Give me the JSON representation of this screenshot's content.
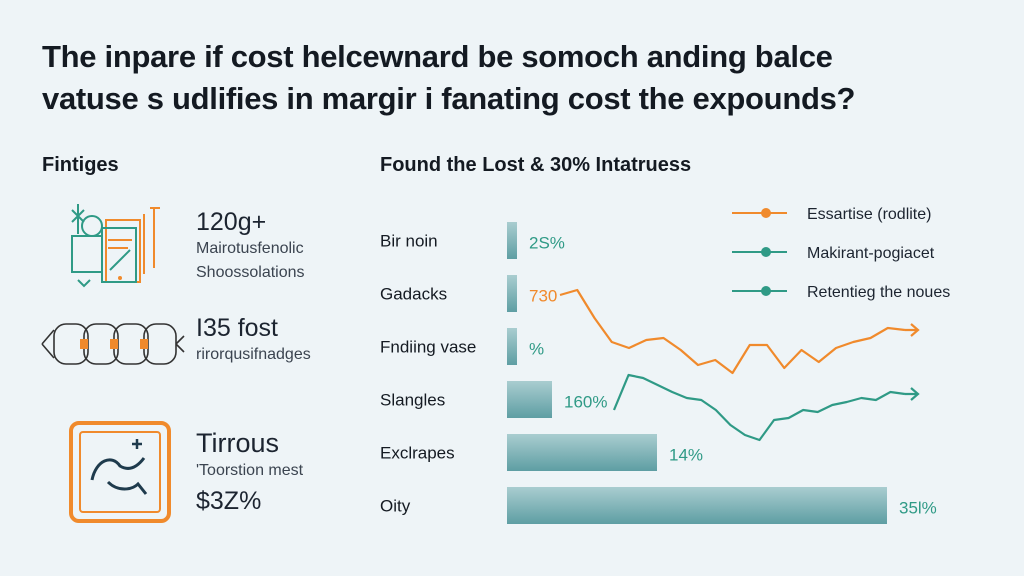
{
  "title": {
    "line1": "The inpare if cost helcewnard be somoch anding balce",
    "line2": "vatuse s udlifies in margir i fanating cost the expounds?"
  },
  "left_panel": {
    "heading": "Fintiges",
    "stats": [
      {
        "icon": "document-tablet-icon",
        "value": "120g+",
        "lines": [
          "Mairotusfenolic",
          "Shoossolations"
        ]
      },
      {
        "icon": "chain-network-icon",
        "value": "I35 fost",
        "lines": [
          "rirorqusifnadges"
        ]
      },
      {
        "icon": "framed-bird-icon",
        "value": "Tirrous",
        "lines": [
          "'Toorstion mest"
        ],
        "extra": "$3Z%"
      }
    ]
  },
  "colors": {
    "background": "#eef4f7",
    "orange": "#f08a2c",
    "teal": "#2f9a86",
    "bar": "#6aa7ab"
  },
  "chart_data": {
    "type": "bar",
    "title": "Found the Lost & 30% Intatruess",
    "categories": [
      "Bir noin",
      "Gadacks",
      "Fndiing vase",
      "Slangles",
      "Exclrapes",
      "Oity"
    ],
    "values": [
      2,
      2,
      2,
      9,
      30,
      76
    ],
    "value_labels": [
      "2S%",
      "730",
      "%",
      "160%",
      "14%",
      "35l%"
    ],
    "legend": {
      "placement": "top-right",
      "entries": [
        {
          "name": "Essartise (rodlite)",
          "color": "#f08a2c"
        },
        {
          "name": "Makirant-pogiacet",
          "color": "#2f9a86"
        },
        {
          "name": "Retentieg the noues",
          "color": "#2f9a86"
        }
      ]
    },
    "line_series": [
      {
        "color": "#f08a2c",
        "values": [
          125,
          130,
          102,
          78,
          72,
          80,
          82,
          70,
          55,
          60,
          47,
          75,
          75,
          52,
          70,
          58,
          72,
          78,
          82,
          92,
          90
        ]
      },
      {
        "color": "#2f9a86",
        "values": [
          10,
          45,
          42,
          35,
          28,
          22,
          20,
          10,
          -5,
          -15,
          -20,
          0,
          2,
          10,
          8,
          15,
          18,
          22,
          20,
          28,
          26
        ]
      }
    ],
    "grid": false
  }
}
